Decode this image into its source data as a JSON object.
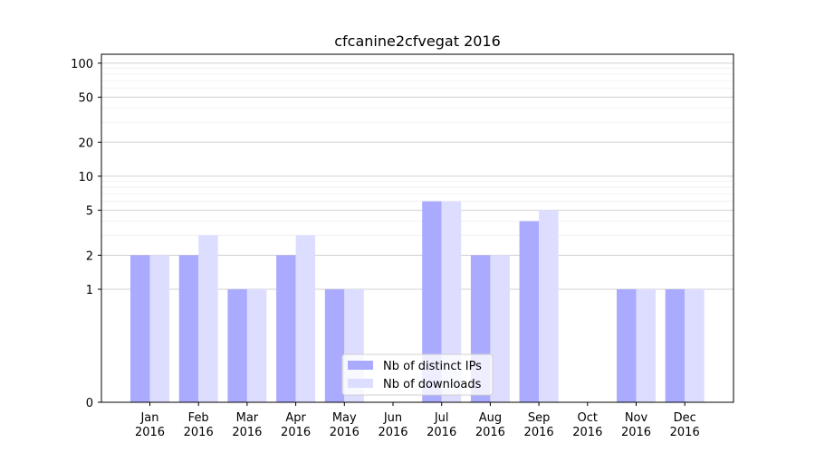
{
  "chart_data": {
    "type": "bar",
    "title": "cfcanine2cfvegat 2016",
    "xlabel": "",
    "ylabel": "",
    "y_scale": "symlog",
    "ylim": [
      0,
      120
    ],
    "y_ticks": [
      0,
      1,
      2,
      5,
      10,
      20,
      50,
      100
    ],
    "grid": true,
    "legend_position": "lower center",
    "categories": [
      [
        "Jan",
        "2016"
      ],
      [
        "Feb",
        "2016"
      ],
      [
        "Mar",
        "2016"
      ],
      [
        "Apr",
        "2016"
      ],
      [
        "May",
        "2016"
      ],
      [
        "Jun",
        "2016"
      ],
      [
        "Jul",
        "2016"
      ],
      [
        "Aug",
        "2016"
      ],
      [
        "Sep",
        "2016"
      ],
      [
        "Oct",
        "2016"
      ],
      [
        "Nov",
        "2016"
      ],
      [
        "Dec",
        "2016"
      ]
    ],
    "series": [
      {
        "name": "Nb of distinct IPs",
        "color": "#aaaaff",
        "values": [
          2,
          2,
          1,
          2,
          1,
          0,
          6,
          2,
          4,
          0,
          1,
          1
        ]
      },
      {
        "name": "Nb of downloads",
        "color": "#ddddff",
        "values": [
          2,
          3,
          1,
          3,
          1,
          0,
          6,
          2,
          5,
          0,
          1,
          1
        ]
      }
    ]
  }
}
